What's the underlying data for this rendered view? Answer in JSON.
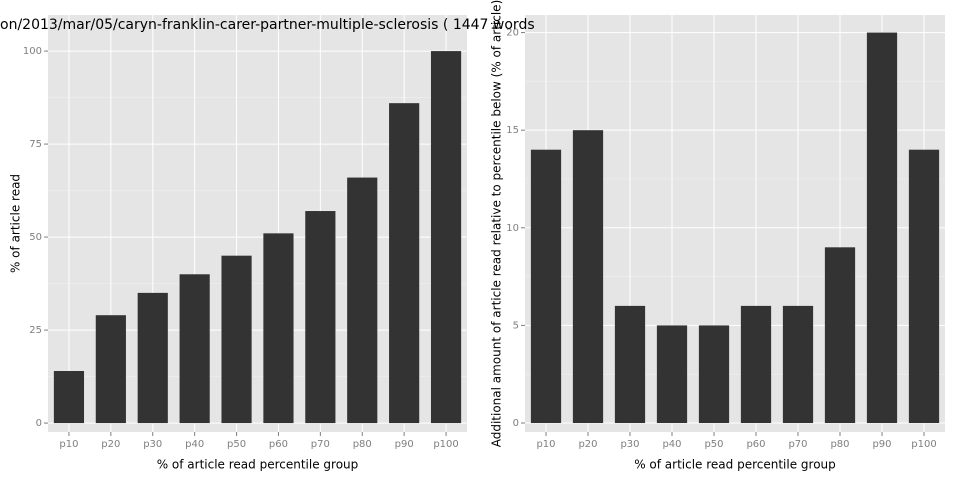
{
  "chart_data": [
    {
      "type": "bar",
      "title": "on/2013/mar/05/caryn-franklin-carer-partner-multiple-sclerosis ( 1447 words",
      "x_label": "% of article read percentile group",
      "y_label": "% of article read",
      "categories": [
        "p10",
        "p20",
        "p30",
        "p40",
        "p50",
        "p60",
        "p70",
        "p80",
        "p90",
        "p100"
      ],
      "values": [
        14,
        29,
        35,
        40,
        45,
        51,
        57,
        66,
        86,
        100
      ],
      "color": "#333333",
      "ylim": [
        -2.4,
        109.7
      ],
      "yticks": [
        0,
        25,
        50,
        75,
        100
      ],
      "grid": true
    },
    {
      "type": "bar",
      "x_label": "% of article read percentile group",
      "y_label": "Additional amount of article read relative to percentile below (% of article)",
      "categories": [
        "p10",
        "p20",
        "p30",
        "p40",
        "p50",
        "p60",
        "p70",
        "p80",
        "p90",
        "p100"
      ],
      "values": [
        14,
        15,
        6,
        5,
        5,
        6,
        6,
        9,
        20,
        14
      ],
      "color": "#333333",
      "ylim": [
        -0.46,
        20.9
      ],
      "yticks": [
        0,
        5,
        10,
        15,
        20
      ],
      "grid": true
    }
  ]
}
